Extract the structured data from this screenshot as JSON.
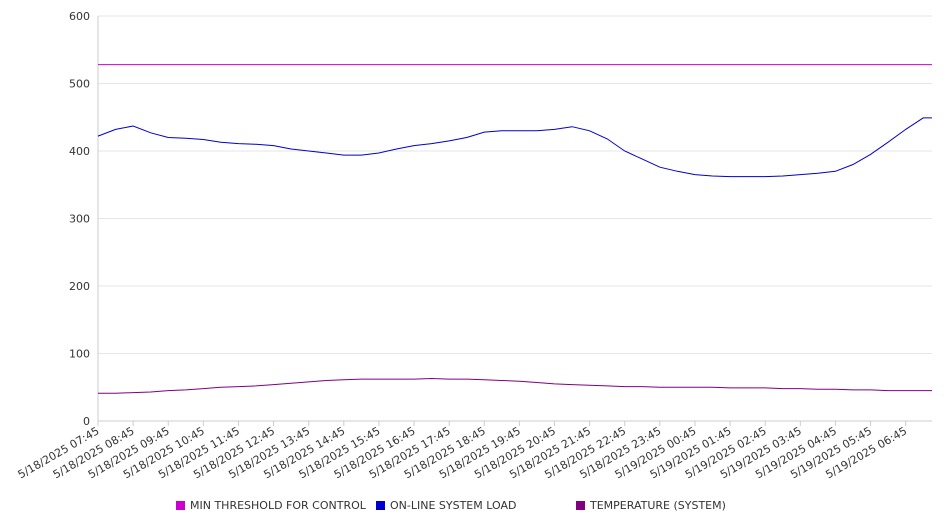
{
  "chart_data": {
    "type": "line",
    "title": "",
    "xlabel": "",
    "ylabel": "",
    "ylim": [
      0,
      600
    ],
    "yticks": [
      0,
      100,
      200,
      300,
      400,
      500,
      600
    ],
    "grid": true,
    "legend_position": "bottom",
    "x_tick_labels": [
      "5/18/2025 07:45",
      "5/18/2025 08:45",
      "5/18/2025 09:45",
      "5/18/2025 10:45",
      "5/18/2025 11:45",
      "5/18/2025 12:45",
      "5/18/2025 13:45",
      "5/18/2025 14:45",
      "5/18/2025 15:45",
      "5/18/2025 16:45",
      "5/18/2025 17:45",
      "5/18/2025 18:45",
      "5/18/2025 19:45",
      "5/18/2025 20:45",
      "5/18/2025 21:45",
      "5/18/2025 22:45",
      "5/18/2025 23:45",
      "5/19/2025 00:45",
      "5/19/2025 01:45",
      "5/19/2025 02:45",
      "5/19/2025 03:45",
      "5/19/2025 04:45",
      "5/19/2025 05:45",
      "5/19/2025 06:45"
    ],
    "x": [
      "5/18/2025 07:45",
      "5/18/2025 08:15",
      "5/18/2025 08:45",
      "5/18/2025 09:15",
      "5/18/2025 09:45",
      "5/18/2025 10:15",
      "5/18/2025 10:45",
      "5/18/2025 11:15",
      "5/18/2025 11:45",
      "5/18/2025 12:15",
      "5/18/2025 12:45",
      "5/18/2025 13:15",
      "5/18/2025 13:45",
      "5/18/2025 14:15",
      "5/18/2025 14:45",
      "5/18/2025 15:15",
      "5/18/2025 15:45",
      "5/18/2025 16:15",
      "5/18/2025 16:45",
      "5/18/2025 17:15",
      "5/18/2025 17:45",
      "5/18/2025 18:15",
      "5/18/2025 18:45",
      "5/18/2025 19:15",
      "5/18/2025 19:45",
      "5/18/2025 20:15",
      "5/18/2025 20:45",
      "5/18/2025 21:15",
      "5/18/2025 21:45",
      "5/18/2025 22:15",
      "5/18/2025 22:45",
      "5/18/2025 23:15",
      "5/18/2025 23:45",
      "5/19/2025 00:15",
      "5/19/2025 00:45",
      "5/19/2025 01:15",
      "5/19/2025 01:45",
      "5/19/2025 02:15",
      "5/19/2025 02:45",
      "5/19/2025 03:15",
      "5/19/2025 03:45",
      "5/19/2025 04:15",
      "5/19/2025 04:45",
      "5/19/2025 05:15",
      "5/19/2025 05:45",
      "5/19/2025 06:15",
      "5/19/2025 06:45",
      "5/19/2025 07:15",
      "5/19/2025 07:30"
    ],
    "series": [
      {
        "name": "MIN THRESHOLD FOR CONTROL",
        "color": "#cc00cc",
        "values": [
          528,
          528,
          528,
          528,
          528,
          528,
          528,
          528,
          528,
          528,
          528,
          528,
          528,
          528,
          528,
          528,
          528,
          528,
          528,
          528,
          528,
          528,
          528,
          528,
          528,
          528,
          528,
          528,
          528,
          528,
          528,
          528,
          528,
          528,
          528,
          528,
          528,
          528,
          528,
          528,
          528,
          528,
          528,
          528,
          528,
          528,
          528,
          528,
          528
        ]
      },
      {
        "name": "ON-LINE SYSTEM LOAD",
        "color": "#0000cc",
        "values": [
          422,
          432,
          437,
          427,
          420,
          419,
          417,
          413,
          411,
          410,
          408,
          403,
          400,
          397,
          394,
          394,
          397,
          403,
          408,
          411,
          415,
          420,
          428,
          430,
          430,
          430,
          432,
          436,
          430,
          418,
          400,
          388,
          376,
          370,
          365,
          363,
          362,
          362,
          362,
          363,
          365,
          367,
          370,
          380,
          395,
          413,
          432,
          449,
          449
        ]
      }
    ]
  },
  "temperature_series": {
    "name": "TEMPERATURE (SYSTEM)",
    "color": "#800080",
    "values": [
      41,
      41,
      42,
      43,
      45,
      46,
      48,
      50,
      51,
      52,
      54,
      56,
      58,
      60,
      61,
      62,
      62,
      62,
      62,
      63,
      62,
      62,
      61,
      60,
      59,
      57,
      55,
      54,
      53,
      52,
      51,
      51,
      50,
      50,
      50,
      50,
      49,
      49,
      49,
      48,
      48,
      47,
      47,
      46,
      46,
      45,
      45,
      45,
      45
    ]
  }
}
